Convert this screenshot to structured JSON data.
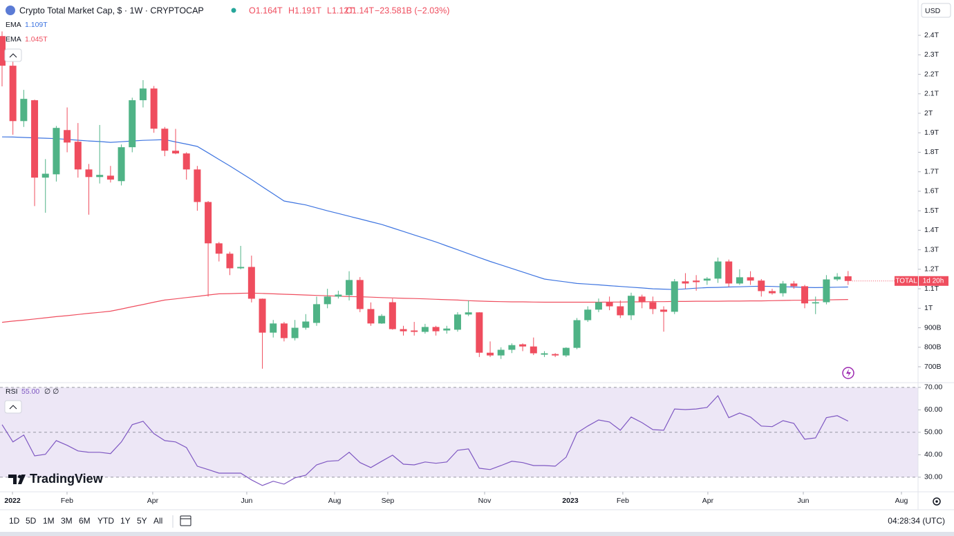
{
  "header": {
    "title": "Crypto Total Market Cap, $ · 1W · CRYPTOCAP",
    "ohlc": [
      "O1.164T",
      "H1.191T",
      "L1.12T",
      "C1.14T",
      "−23.581B (−2.03%)"
    ]
  },
  "chart_data": [
    {
      "type": "candlestick",
      "currency": "USD",
      "up_color": "#4fb386",
      "down_color": "#ef4d5e",
      "open": [
        2.396,
        2.244,
        1.96,
        2.067,
        1.67,
        1.687,
        1.914,
        1.854,
        1.712,
        1.673,
        1.68,
        1.652,
        1.826,
        2.067,
        2.127,
        1.921,
        1.808,
        1.794,
        1.712,
        1.545,
        1.333,
        1.28,
        1.205,
        1.212,
        1.049,
        0.875,
        0.922,
        0.847,
        0.9,
        0.925,
        1.021,
        1.06,
        1.067,
        1.145,
        0.996,
        0.922,
        1.031,
        0.893,
        0.886,
        0.879,
        0.904,
        0.886,
        0.89,
        0.968,
        0.979,
        0.772,
        0.758,
        0.787,
        0.815,
        0.804,
        0.762,
        0.765,
        0.758,
        0.797,
        0.939,
        0.993,
        1.031,
        1.01,
        0.964,
        1.06,
        1.031,
        0.993,
        0.982,
        1.138,
        1.142,
        1.142,
        1.152,
        1.24,
        1.127,
        1.159,
        1.142,
        1.088,
        1.077,
        1.127,
        1.113,
        1.025,
        1.031,
        1.148,
        1.164
      ],
      "high": [
        2.42,
        2.27,
        2.12,
        2.07,
        1.765,
        1.935,
        2.03,
        1.95,
        1.74,
        1.94,
        1.73,
        1.84,
        2.08,
        2.17,
        2.14,
        1.93,
        1.92,
        1.8,
        1.73,
        1.55,
        1.34,
        1.29,
        1.32,
        1.27,
        1.05,
        0.94,
        0.93,
        0.94,
        0.97,
        1.06,
        1.1,
        1.09,
        1.19,
        1.16,
        1.03,
        0.97,
        1.05,
        0.91,
        0.93,
        0.92,
        0.91,
        0.91,
        0.98,
        1.04,
        0.98,
        0.83,
        0.8,
        0.82,
        0.82,
        0.85,
        0.78,
        0.77,
        0.8,
        0.95,
        1.01,
        1.05,
        1.06,
        1.04,
        1.08,
        1.07,
        1.06,
        1.01,
        1.15,
        1.18,
        1.17,
        1.16,
        1.26,
        1.25,
        1.2,
        1.19,
        1.15,
        1.1,
        1.14,
        1.14,
        1.12,
        1.06,
        1.17,
        1.18,
        1.191
      ],
      "low": [
        2.138,
        1.89,
        1.93,
        1.524,
        1.49,
        1.65,
        1.8,
        1.67,
        1.48,
        1.64,
        1.645,
        1.63,
        1.8,
        2.03,
        1.9,
        1.78,
        1.79,
        1.66,
        1.5,
        1.06,
        1.24,
        1.17,
        1.2,
        1.03,
        0.69,
        0.85,
        0.83,
        0.835,
        0.89,
        0.91,
        1.0,
        1.05,
        1.04,
        0.98,
        0.91,
        0.92,
        0.89,
        0.86,
        0.86,
        0.87,
        0.86,
        0.87,
        0.88,
        0.96,
        0.75,
        0.75,
        0.74,
        0.77,
        0.78,
        0.76,
        0.75,
        0.75,
        0.75,
        0.79,
        0.93,
        0.98,
        0.99,
        0.95,
        0.94,
        1.0,
        0.97,
        0.88,
        0.97,
        1.1,
        1.09,
        1.12,
        1.13,
        1.11,
        1.12,
        1.12,
        1.06,
        1.07,
        1.06,
        1.1,
        1.0,
        0.97,
        1.02,
        1.14,
        1.12
      ],
      "close": [
        2.244,
        1.96,
        2.074,
        1.67,
        1.69,
        1.925,
        1.85,
        1.712,
        1.673,
        1.684,
        1.66,
        1.826,
        2.067,
        2.127,
        1.921,
        1.808,
        1.794,
        1.712,
        1.545,
        1.333,
        1.28,
        1.205,
        1.212,
        1.049,
        0.875,
        0.922,
        0.847,
        0.9,
        0.932,
        1.021,
        1.06,
        1.07,
        1.145,
        0.996,
        0.922,
        0.961,
        0.893,
        0.882,
        0.879,
        0.904,
        0.882,
        0.896,
        0.968,
        0.979,
        0.772,
        0.758,
        0.787,
        0.811,
        0.804,
        0.769,
        0.769,
        0.758,
        0.797,
        0.939,
        0.993,
        1.031,
        1.01,
        0.964,
        1.064,
        1.031,
        0.996,
        0.982,
        1.138,
        1.127,
        1.134,
        1.152,
        1.24,
        1.127,
        1.159,
        1.142,
        1.088,
        1.077,
        1.127,
        1.113,
        1.025,
        1.031,
        1.148,
        1.162,
        1.14
      ],
      "series": [
        {
          "name": "EMA",
          "color": "#3d74e0",
          "last_label": "1.109T",
          "values": [
            1.879,
            1.878,
            1.876,
            1.874,
            1.872,
            1.87,
            1.866,
            1.862,
            1.858,
            1.855,
            1.851,
            1.854,
            1.858,
            1.861,
            1.863,
            1.865,
            1.853,
            1.842,
            1.83,
            1.797,
            1.763,
            1.73,
            1.695,
            1.66,
            1.623,
            1.587,
            1.55,
            1.54,
            1.53,
            1.515,
            1.5,
            1.486,
            1.472,
            1.458,
            1.444,
            1.43,
            1.412,
            1.394,
            1.376,
            1.358,
            1.34,
            1.32,
            1.3,
            1.28,
            1.26,
            1.24,
            1.222,
            1.204,
            1.186,
            1.168,
            1.15,
            1.142,
            1.135,
            1.127,
            1.124,
            1.12,
            1.116,
            1.112,
            1.108,
            1.104,
            1.1,
            1.098,
            1.096,
            1.099,
            1.103,
            1.106,
            1.107,
            1.109,
            1.11,
            1.112,
            1.113,
            1.112,
            1.11,
            1.109,
            1.107,
            1.106,
            1.107,
            1.108,
            1.109
          ]
        },
        {
          "name": "EMA",
          "color": "#ef4d5e",
          "last_label": "1.045T",
          "values": [
            0.928,
            0.934,
            0.939,
            0.945,
            0.951,
            0.957,
            0.962,
            0.968,
            0.974,
            0.979,
            0.985,
            0.996,
            1.008,
            1.019,
            1.031,
            1.042,
            1.048,
            1.055,
            1.061,
            1.068,
            1.074,
            1.075,
            1.077,
            1.078,
            1.076,
            1.074,
            1.072,
            1.07,
            1.068,
            1.066,
            1.064,
            1.062,
            1.06,
            1.059,
            1.057,
            1.055,
            1.053,
            1.051,
            1.05,
            1.048,
            1.046,
            1.044,
            1.042,
            1.039,
            1.037,
            1.035,
            1.034,
            1.033,
            1.033,
            1.032,
            1.031,
            1.031,
            1.031,
            1.031,
            1.031,
            1.031,
            1.032,
            1.032,
            1.033,
            1.033,
            1.034,
            1.034,
            1.035,
            1.035,
            1.036,
            1.036,
            1.036,
            1.037,
            1.037,
            1.038,
            1.038,
            1.039,
            1.04,
            1.041,
            1.041,
            1.042,
            1.043,
            1.044,
            1.045
          ]
        }
      ],
      "last_marker": {
        "symbol": "TOTAL",
        "countdown": "1d 20h"
      },
      "xlim": [
        -0.19,
        84.45
      ],
      "xticks": [
        {
          "value": 0.96,
          "label": "2022"
        },
        {
          "value": 5.99,
          "label": "Feb"
        },
        {
          "value": 13.89,
          "label": "Apr"
        },
        {
          "value": 22.56,
          "label": "Jun"
        },
        {
          "value": 30.66,
          "label": "Aug"
        },
        {
          "value": 35.56,
          "label": "Sep"
        },
        {
          "value": 44.49,
          "label": "Nov"
        },
        {
          "value": 52.39,
          "label": "2023"
        },
        {
          "value": 57.23,
          "label": "Feb"
        },
        {
          "value": 65.07,
          "label": "Apr"
        },
        {
          "value": 73.87,
          "label": "Jun"
        },
        {
          "value": 82.92,
          "label": "Aug"
        }
      ],
      "ylim": [
        0.622,
        2.581
      ],
      "yticks": [
        {
          "value": 0.7,
          "label": "700B"
        },
        {
          "value": 0.8,
          "label": "800B"
        },
        {
          "value": 0.9,
          "label": "900B"
        },
        {
          "value": 1,
          "label": "1T"
        },
        {
          "value": 1.1,
          "label": "1.1T"
        },
        {
          "value": 1.2,
          "label": "1.2T"
        },
        {
          "value": 1.3,
          "label": "1.3T"
        },
        {
          "value": 1.4,
          "label": "1.4T"
        },
        {
          "value": 1.5,
          "label": "1.5T"
        },
        {
          "value": 1.6,
          "label": "1.6T"
        },
        {
          "value": 1.7,
          "label": "1.7T"
        },
        {
          "value": 1.8,
          "label": "1.8T"
        },
        {
          "value": 1.9,
          "label": "1.9T"
        },
        {
          "value": 2,
          "label": "2T"
        },
        {
          "value": 2.1,
          "label": "2.1T"
        },
        {
          "value": 2.2,
          "label": "2.2T"
        },
        {
          "value": 2.3,
          "label": "2.3T"
        },
        {
          "value": 2.4,
          "label": "2.4T"
        }
      ]
    },
    {
      "type": "line",
      "series": [
        {
          "name": "RSI",
          "color": "#7e57c2",
          "last_label": "55.00",
          "params": "∅ ∅",
          "values": [
            53.4,
            45.7,
            48.8,
            39.5,
            40.2,
            46.3,
            44.2,
            41.7,
            41.1,
            41.1,
            40.5,
            45.7,
            53.4,
            54.9,
            49.4,
            46.3,
            45.7,
            43.2,
            34.9,
            33.4,
            31.8,
            31.8,
            31.8,
            28.8,
            26.3,
            28.2,
            26.9,
            29.7,
            30.9,
            35.5,
            37.1,
            37.4,
            41.1,
            36.5,
            34.3,
            37.1,
            39.8,
            35.8,
            35.5,
            36.8,
            36.2,
            36.8,
            42.0,
            42.6,
            34.0,
            33.4,
            35.2,
            37.1,
            36.5,
            35.2,
            35.2,
            34.9,
            38.9,
            49.7,
            52.8,
            55.5,
            54.6,
            50.9,
            56.8,
            54.3,
            51.2,
            50.9,
            60.4,
            60.1,
            60.4,
            61.1,
            66.3,
            56.5,
            58.6,
            56.8,
            52.8,
            52.5,
            55.2,
            54.0,
            46.9,
            47.5,
            56.5,
            57.4,
            55.0
          ]
        }
      ],
      "band_color": "#ede7f6",
      "ylim": [
        23.5,
        71.8
      ],
      "yticks": [
        {
          "value": 30,
          "label": "30.00"
        },
        {
          "value": 40,
          "label": "40.00"
        },
        {
          "value": 50,
          "label": "50.00"
        },
        {
          "value": 60,
          "label": "60.00"
        },
        {
          "value": 70,
          "label": "70.00"
        }
      ]
    }
  ],
  "toolbar": {
    "ranges": [
      "1D",
      "5D",
      "1M",
      "3M",
      "6M",
      "YTD",
      "1Y",
      "5Y",
      "All"
    ],
    "clock": "04:28:34 (UTC)"
  },
  "logo": "TradingView"
}
